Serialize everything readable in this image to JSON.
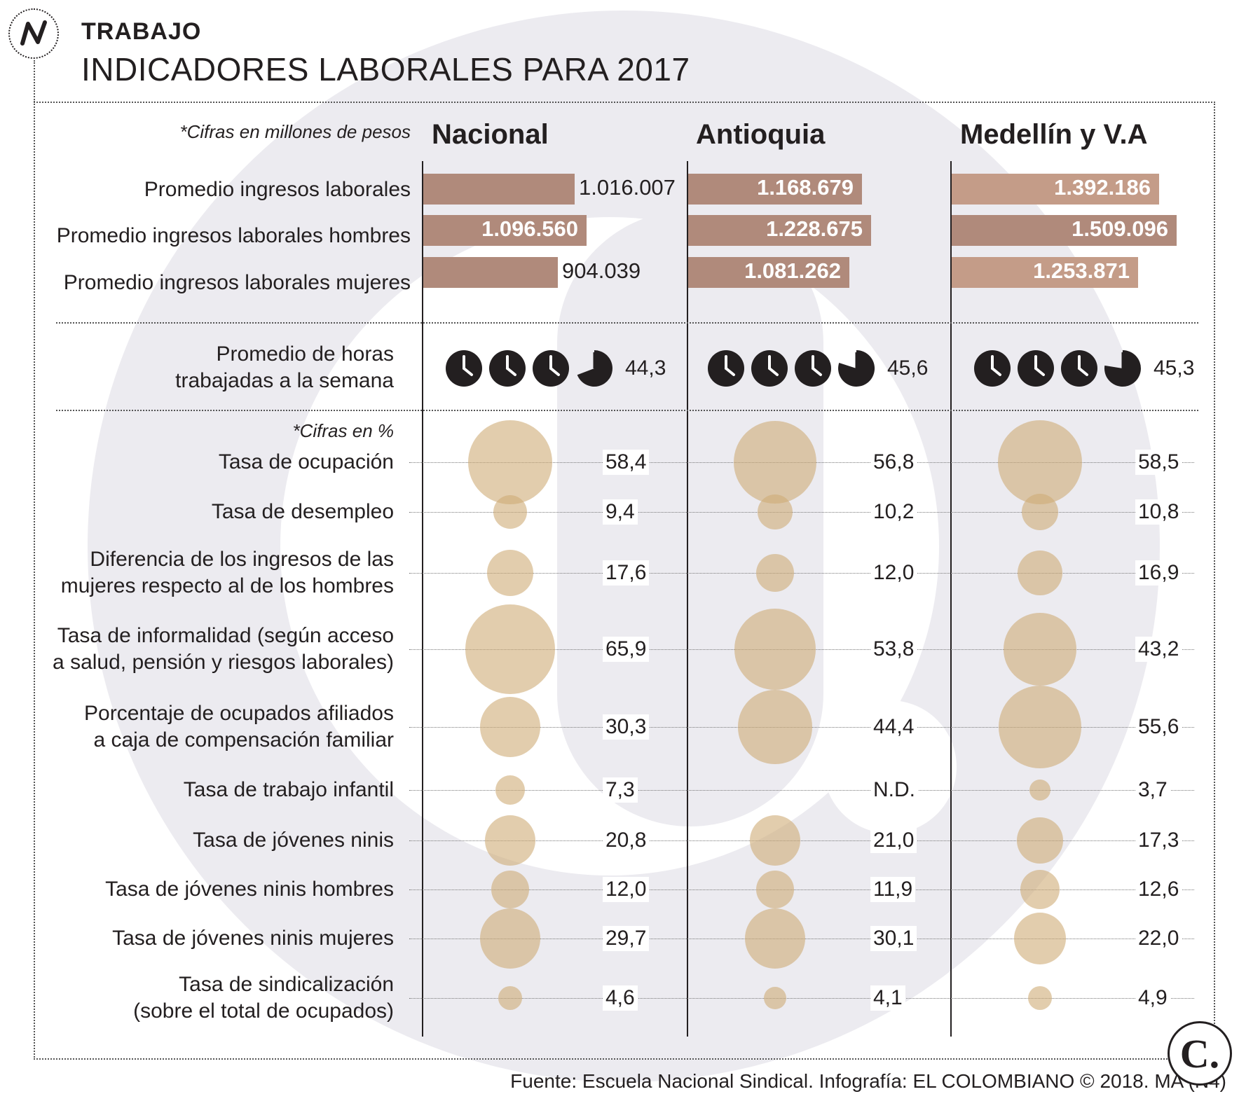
{
  "header": {
    "section": "TRABAJO",
    "title": "INDICADORES LABORALES PARA 2017"
  },
  "notes": {
    "income_units": "*Cifras en millones de pesos",
    "percent_units": "*Cifras en %"
  },
  "colors": {
    "bar": "#b08a7b",
    "bar_light": "#c49c88",
    "bubble": "#ceab76",
    "clock": "#231f20",
    "watermark": "#ecebf0"
  },
  "icons": {
    "brand_logo": "n-logo-icon",
    "publisher_logo": "c-logo-icon",
    "hours": "clock-icon"
  },
  "source": "Fuente: Escuela Nacional Sindical. Infografía: EL COLOMBIANO © 2018. MA (N4)",
  "chart_data": {
    "type": "table",
    "regions": [
      "Nacional",
      "Antioquia",
      "Medellín y V.A"
    ],
    "income": {
      "type": "bar",
      "max_scale": 1600000,
      "rows": [
        {
          "label": "Promedio ingresos laborales",
          "values": [
            1016007,
            1168679,
            1392186
          ],
          "display": [
            "1.016.007",
            "1.168.679",
            "1.392.186"
          ]
        },
        {
          "label": "Promedio ingresos laborales hombres",
          "values": [
            1096560,
            1228675,
            1509096
          ],
          "display": [
            "1.096.560",
            "1.228.675",
            "1.509.096"
          ]
        },
        {
          "label": "Promedio ingresos laborales mujeres",
          "values": [
            904039,
            1081262,
            1253871
          ],
          "display": [
            "904.039",
            "1.081.262",
            "1.253.871"
          ]
        }
      ]
    },
    "hours": {
      "label_line1": "Promedio de horas",
      "label_line2": "trabajadas a la semana",
      "values": [
        44.3,
        45.6,
        45.3
      ],
      "display": [
        "44,3",
        "45,6",
        "45,3"
      ]
    },
    "rates": {
      "type": "bubble",
      "rows": [
        {
          "label": [
            "Tasa de ocupación"
          ],
          "values": [
            58.4,
            56.8,
            58.5
          ],
          "display": [
            "58,4",
            "56,8",
            "58,5"
          ]
        },
        {
          "label": [
            "Tasa de desempleo"
          ],
          "values": [
            9.4,
            10.2,
            10.8
          ],
          "display": [
            "9,4",
            "10,2",
            "10,8"
          ]
        },
        {
          "label": [
            "Diferencia de los ingresos de las",
            "mujeres respecto al de los hombres"
          ],
          "values": [
            17.6,
            12.0,
            16.9
          ],
          "display": [
            "17,6",
            "12,0",
            "16,9"
          ]
        },
        {
          "label": [
            "Tasa de informalidad (según acceso",
            "a salud, pensión y riesgos laborales)"
          ],
          "values": [
            65.9,
            53.8,
            43.2
          ],
          "display": [
            "65,9",
            "53,8",
            "43,2"
          ]
        },
        {
          "label": [
            "Porcentaje de ocupados afiliados",
            "a caja de compensación familiar"
          ],
          "values": [
            30.3,
            44.4,
            55.6
          ],
          "display": [
            "30,3",
            "44,4",
            "55,6"
          ]
        },
        {
          "label": [
            "Tasa de trabajo infantil"
          ],
          "values": [
            7.3,
            null,
            3.7
          ],
          "display": [
            "7,3",
            "N.D.",
            "3,7"
          ]
        },
        {
          "label": [
            "Tasa de jóvenes ninis"
          ],
          "values": [
            20.8,
            21.0,
            17.3
          ],
          "display": [
            "20,8",
            "21,0",
            "17,3"
          ]
        },
        {
          "label": [
            "Tasa de jóvenes ninis hombres"
          ],
          "values": [
            12.0,
            11.9,
            12.6
          ],
          "display": [
            "12,0",
            "11,9",
            "12,6"
          ]
        },
        {
          "label": [
            "Tasa de jóvenes ninis mujeres"
          ],
          "values": [
            29.7,
            30.1,
            22.0
          ],
          "display": [
            "29,7",
            "30,1",
            "22,0"
          ]
        },
        {
          "label": [
            "Tasa de sindicalización",
            "(sobre el total de ocupados)"
          ],
          "values": [
            4.6,
            4.1,
            4.9
          ],
          "display": [
            "4,6",
            "4,1",
            "4,9"
          ]
        }
      ]
    }
  }
}
